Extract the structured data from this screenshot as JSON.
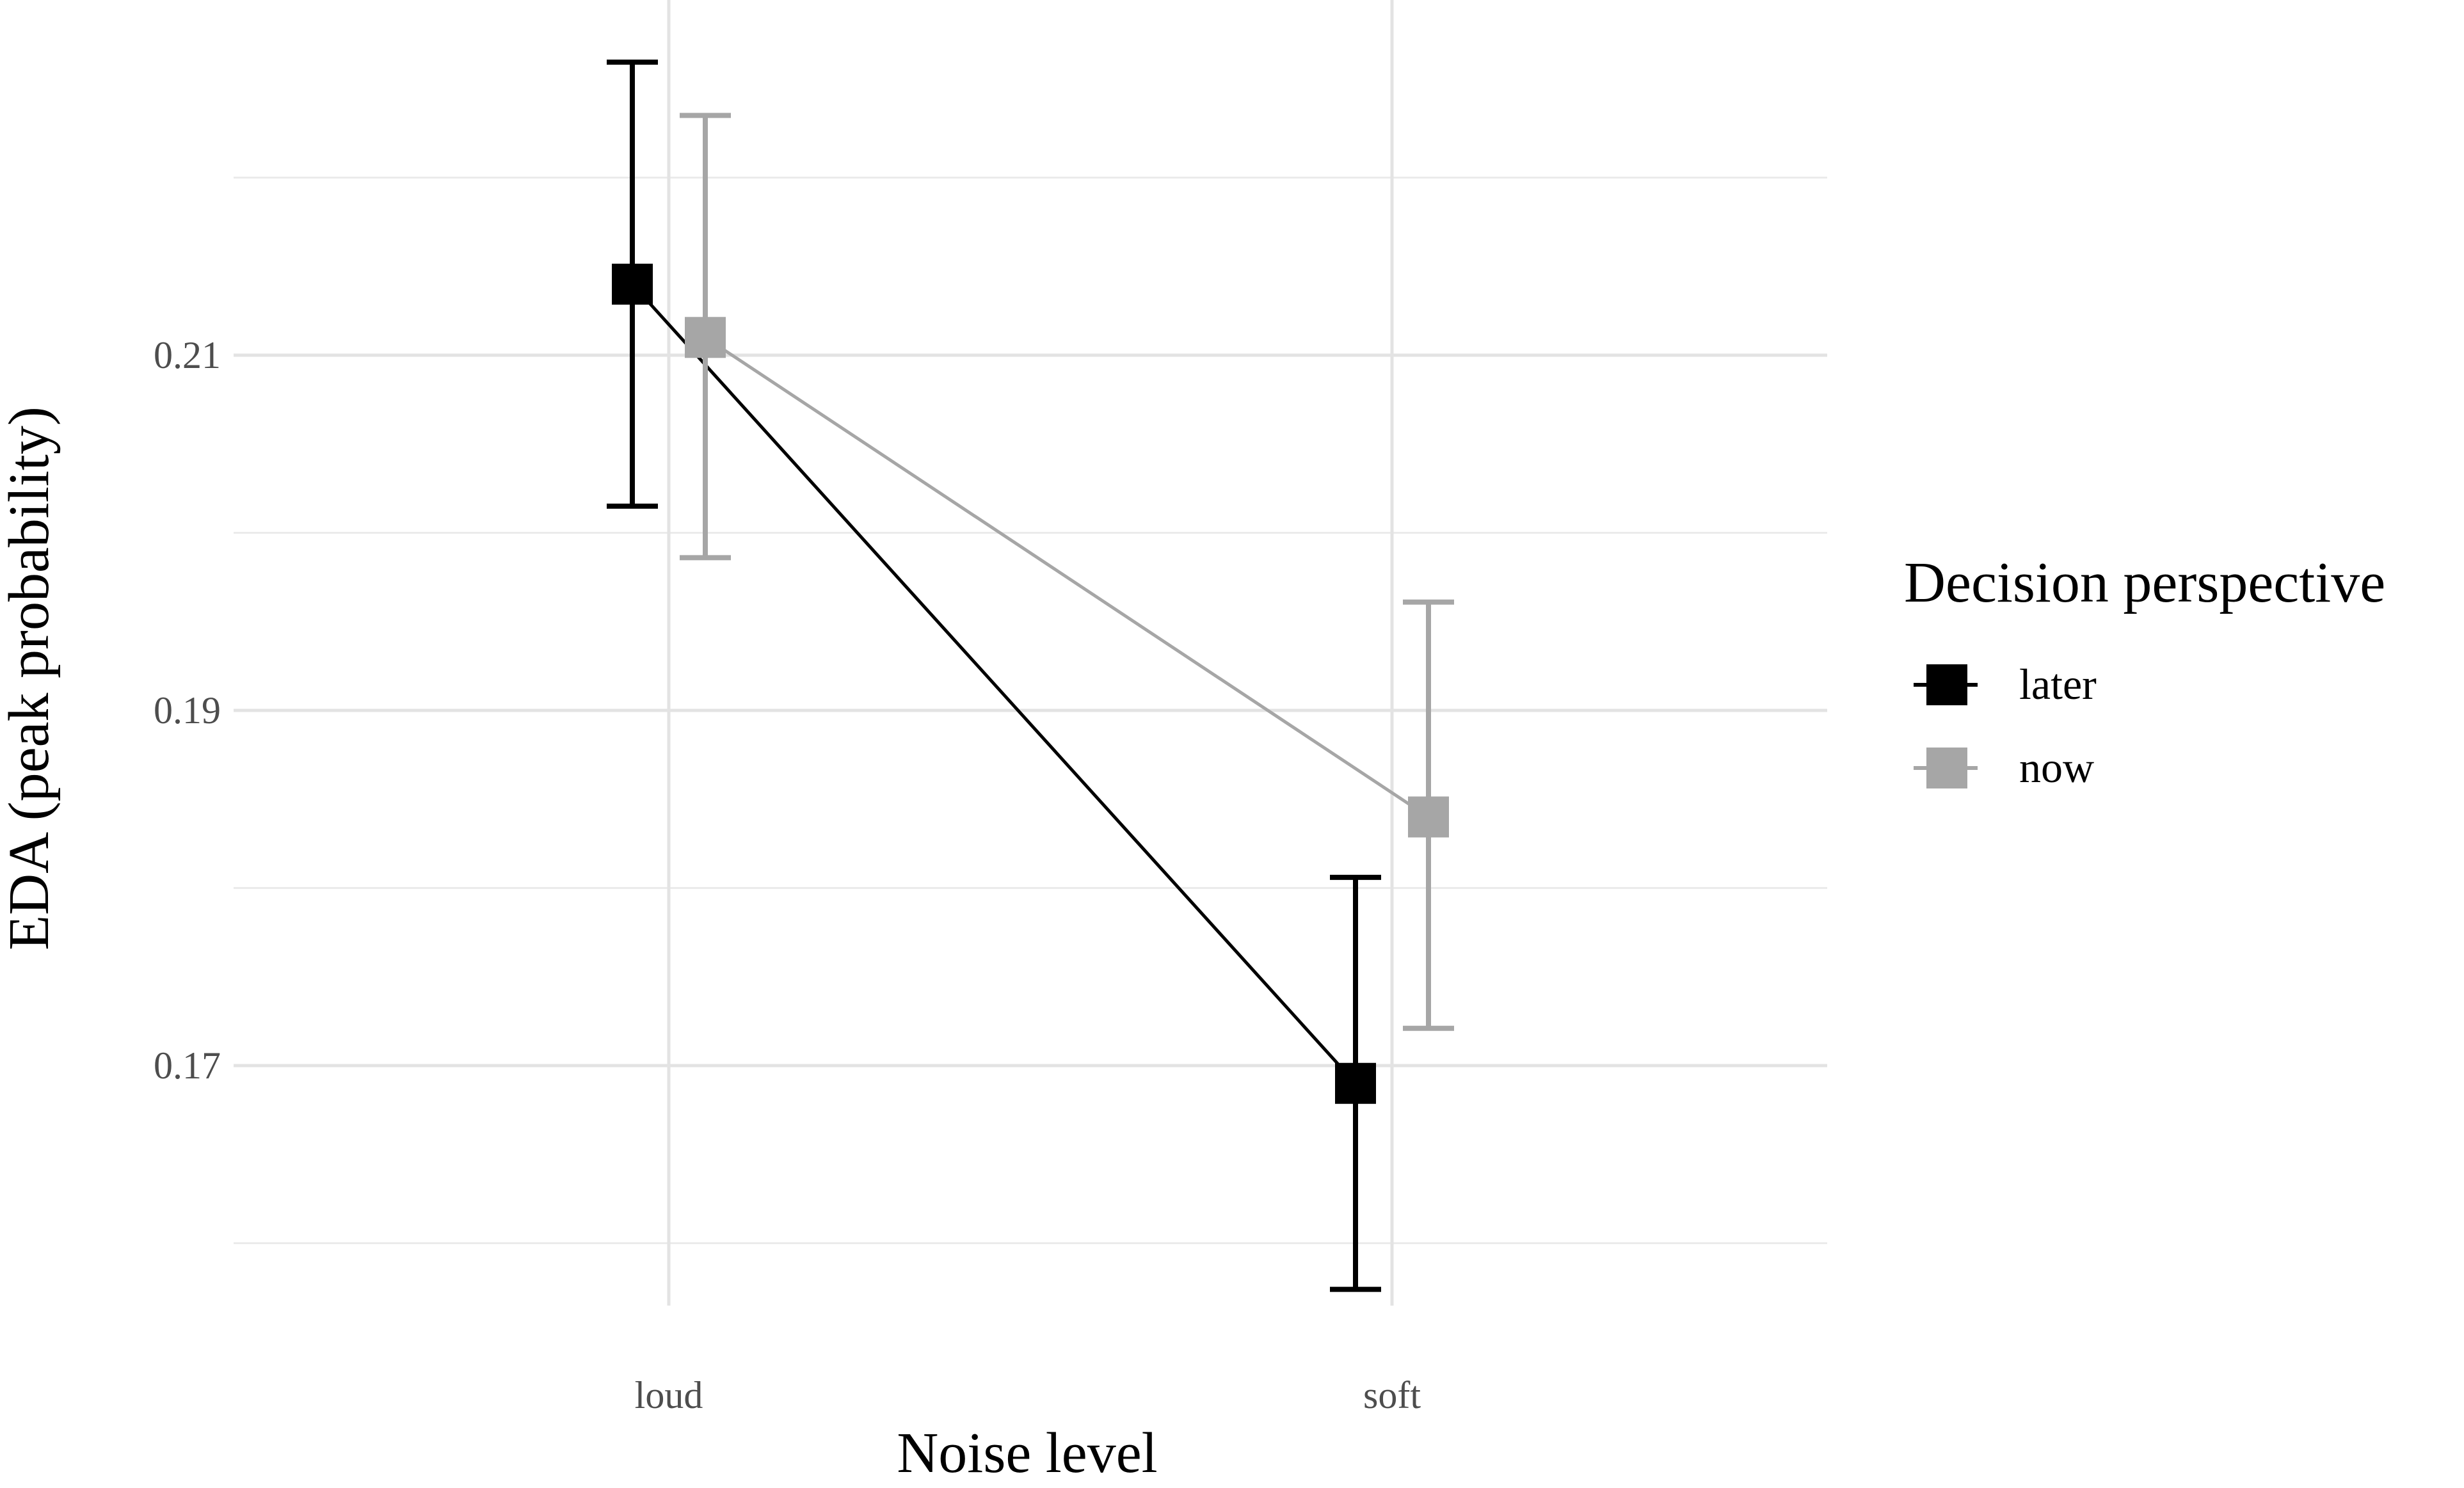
{
  "chart_data": {
    "type": "line",
    "title": "",
    "xlabel": "Noise level",
    "ylabel": "EDA (peak probability)",
    "categories": [
      "loud",
      "soft"
    ],
    "ylim": [
      0.1575,
      0.2265
    ],
    "yticks": [
      0.17,
      0.19,
      0.21
    ],
    "ytick_labels": [
      "0.17",
      "0.19",
      "0.21"
    ],
    "grid": true,
    "legend": {
      "title": "Decision perspective",
      "placement": "right"
    },
    "series": [
      {
        "name": "later",
        "color": "#000000",
        "values": [
          0.214,
          0.169
        ],
        "lower": [
          0.2015,
          0.1574
        ],
        "upper": [
          0.2265,
          0.1806
        ]
      },
      {
        "name": "now",
        "color": "#a6a6a6",
        "values": [
          0.211,
          0.184
        ],
        "lower": [
          0.1986,
          0.1721
        ],
        "upper": [
          0.2235,
          0.1961
        ]
      }
    ]
  }
}
